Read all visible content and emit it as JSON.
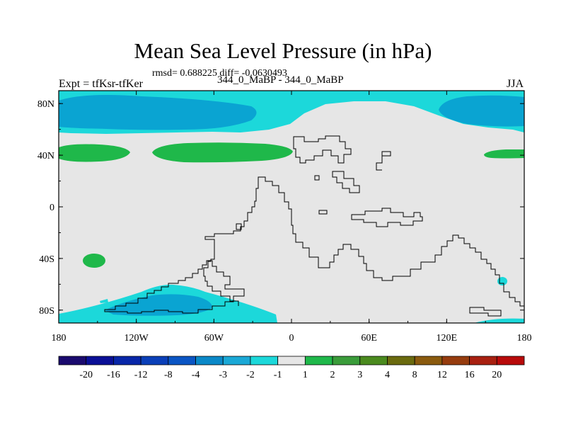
{
  "chart_data": {
    "type": "heatmap",
    "title": "Mean Sea Level Pressure (in hPa)",
    "stats": "rmsd= 0.688225  diff= -0.0630493",
    "experiment": "Expt = tfKsr-tfKer",
    "subtitle": "344_0_MaBP - 344_0_MaBP",
    "season": "JJA",
    "x_ticks": [
      "180",
      "120W",
      "60W",
      "0",
      "60E",
      "120E",
      "180"
    ],
    "y_ticks": [
      "80N",
      "40N",
      "0",
      "40S",
      "80S"
    ],
    "xlim": [
      -180,
      180
    ],
    "ylim": [
      -90,
      90
    ],
    "colorbar": {
      "labels": [
        "-20",
        "-16",
        "-12",
        "-8",
        "-4",
        "-3",
        "-2",
        "-1",
        "1",
        "2",
        "3",
        "4",
        "8",
        "12",
        "16",
        "20"
      ],
      "colors": [
        "#1a0a6e",
        "#0a0f96",
        "#0826a8",
        "#0a3fb8",
        "#0a55c4",
        "#0a88c8",
        "#1aa8d6",
        "#1cd8da",
        "#e6e6e6",
        "#1fb84a",
        "#3a9c3a",
        "#4a8a1e",
        "#6a6a0e",
        "#8a5a0e",
        "#963c0e",
        "#a82010",
        "#b80a0a"
      ]
    }
  }
}
